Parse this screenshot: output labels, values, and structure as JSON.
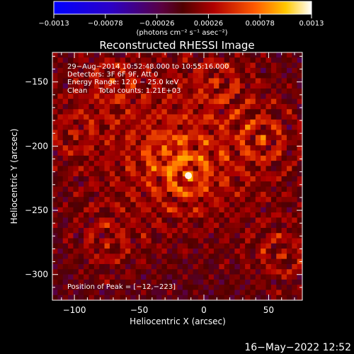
{
  "chart_data": {
    "type": "heatmap",
    "title": "Reconstructed RHESSI Image",
    "xlabel": "Heliocentric X (arcsec)",
    "ylabel": "Heliocentric Y (arcsec)",
    "xlim": [
      -117,
      76
    ],
    "ylim": [
      -320,
      -127
    ],
    "x_ticks": [
      -100,
      -50,
      0,
      50
    ],
    "x_tick_labels": [
      "−100",
      "−50",
      "0",
      "50"
    ],
    "y_ticks": [
      -150,
      -200,
      -250,
      -300
    ],
    "y_tick_labels": [
      "−150",
      "−200",
      "−250",
      "−300"
    ],
    "grid": false,
    "colorbar": {
      "range": [
        -0.0013,
        0.0013
      ],
      "ticks": [
        -0.0013,
        -0.00078,
        -0.00026,
        0.00026,
        0.00078,
        0.0013
      ],
      "tick_labels": [
        "−0.0013",
        "−0.00078",
        "−0.00026",
        "0.00026",
        "0.00078",
        "0.0013"
      ],
      "unit_label": "(photons cm⁻² s⁻¹ asec⁻²)"
    },
    "annotations": [
      "29−Aug−2014 10:52:48.000 to 10:55:16.000",
      "Detectors: 3F 6F 9F, Att 0",
      "Energy Range: 12.0 − 25.0 keV",
      "Clean     Total counts: 1.21E+03"
    ],
    "peak_text": "Position of Peak = [−12,−223]",
    "peak": {
      "x": -12,
      "y": -223
    },
    "bright_sources": [
      {
        "x": -12,
        "y": -223,
        "level": 1.0
      },
      {
        "x": -30,
        "y": -205,
        "level": 0.75
      },
      {
        "x": 45,
        "y": -195,
        "level": 0.8
      },
      {
        "x": 60,
        "y": -285,
        "level": 0.75
      },
      {
        "x": -75,
        "y": -275,
        "level": 0.7
      },
      {
        "x": -70,
        "y": -150,
        "level": 0.7
      },
      {
        "x": 10,
        "y": -150,
        "level": 0.7
      },
      {
        "x": -100,
        "y": -190,
        "level": 0.6
      }
    ]
  },
  "footer": {
    "timestamp": "16−May−2022 12:52"
  }
}
